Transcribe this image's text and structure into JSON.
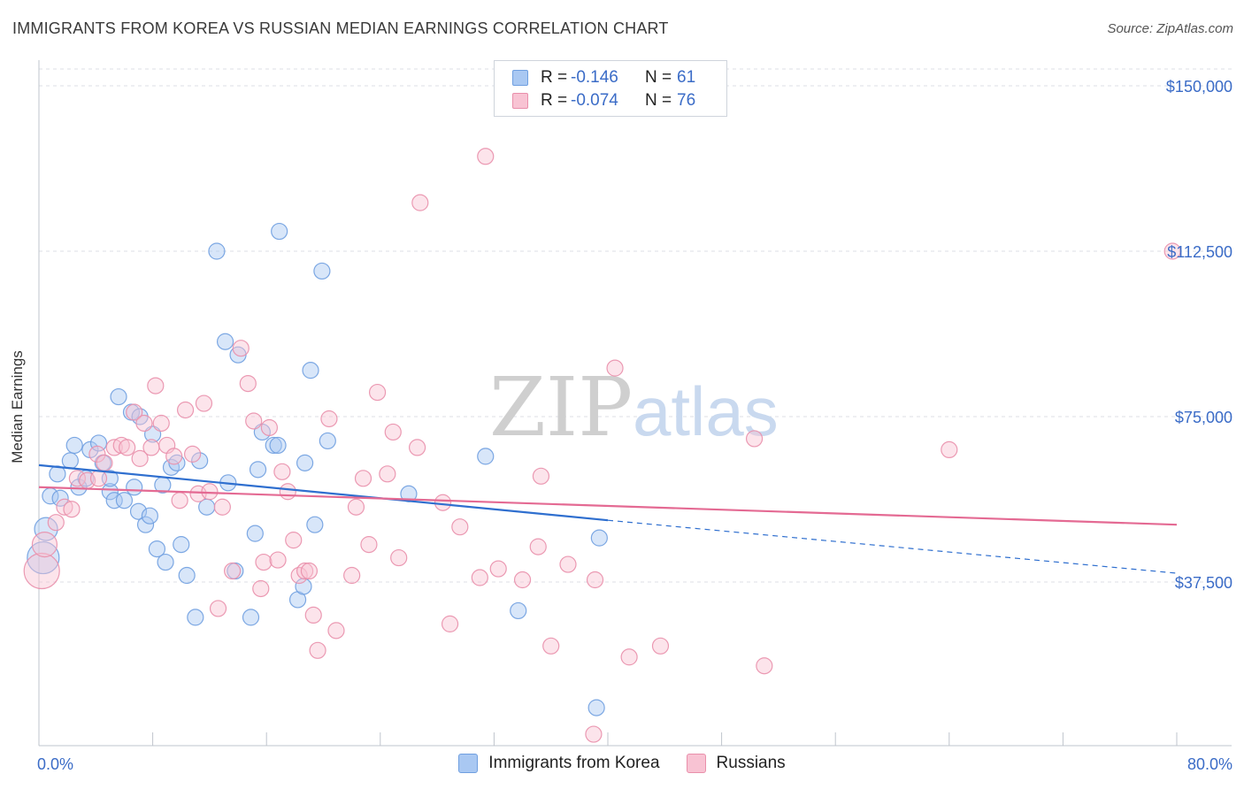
{
  "header": {
    "title": "IMMIGRANTS FROM KOREA VS RUSSIAN MEDIAN EARNINGS CORRELATION CHART",
    "source": "Source: ZipAtlas.com"
  },
  "watermark": {
    "zip": "ZIP",
    "atlas": "atlas"
  },
  "legend_top": [
    {
      "r_label": "R =",
      "r_value": "-0.146",
      "n_label": "N =",
      "n_value": "61",
      "color": "#a9c8f2",
      "border": "#6f9fe0"
    },
    {
      "r_label": "R =",
      "r_value": "-0.074",
      "n_label": "N =",
      "n_value": "76",
      "color": "#f8c3d3",
      "border": "#e98fab"
    }
  ],
  "chart_data": {
    "type": "scatter",
    "ylabel": "Median Earnings",
    "xlabel": "",
    "xlim": [
      0,
      80
    ],
    "ylim": [
      0,
      150000
    ],
    "x_tick_labels": [
      "0.0%",
      "80.0%"
    ],
    "y_ticks": [
      {
        "value": 37500,
        "label": "$37,500"
      },
      {
        "value": 75000,
        "label": "$75,000"
      },
      {
        "value": 112500,
        "label": "$112,500"
      },
      {
        "value": 150000,
        "label": "$150,000"
      }
    ],
    "grid": true,
    "legend_position": "bottom",
    "series": [
      {
        "name": "Immigrants from Korea",
        "color": "#6f9fe0",
        "fill": "#a9c8f2",
        "trend": {
          "x0": 0,
          "y0": 64000,
          "x1": 40,
          "y1": 51500,
          "dash_to_x": 80,
          "dash_y": 39500,
          "color": "#2f6fcf"
        },
        "points": [
          [
            0.5,
            49500,
            13
          ],
          [
            0.3,
            43000,
            18
          ],
          [
            0.8,
            57000,
            9
          ],
          [
            1.3,
            62000,
            9
          ],
          [
            1.5,
            56500,
            9
          ],
          [
            2.2,
            65000,
            9
          ],
          [
            2.5,
            68500,
            9
          ],
          [
            2.8,
            59000,
            9
          ],
          [
            3.3,
            61000,
            9
          ],
          [
            3.6,
            67500,
            9
          ],
          [
            4.2,
            69000,
            9
          ],
          [
            4.5,
            64500,
            9
          ],
          [
            5.0,
            58000,
            9
          ],
          [
            5.3,
            56000,
            9
          ],
          [
            5.0,
            61000,
            9
          ],
          [
            5.6,
            79500,
            9
          ],
          [
            6.0,
            56000,
            9
          ],
          [
            6.5,
            76000,
            9
          ],
          [
            6.7,
            59000,
            9
          ],
          [
            7.0,
            53500,
            9
          ],
          [
            7.1,
            75000,
            9
          ],
          [
            7.5,
            50500,
            9
          ],
          [
            7.8,
            52500,
            9
          ],
          [
            8.0,
            71000,
            9
          ],
          [
            8.3,
            45000,
            9
          ],
          [
            8.7,
            59500,
            9
          ],
          [
            8.9,
            42000,
            9
          ],
          [
            9.3,
            63500,
            9
          ],
          [
            9.7,
            64500,
            9
          ],
          [
            10.0,
            46000,
            9
          ],
          [
            10.4,
            39000,
            9
          ],
          [
            11.0,
            29500,
            9
          ],
          [
            11.3,
            65000,
            9
          ],
          [
            11.8,
            54500,
            9
          ],
          [
            12.5,
            112500,
            9
          ],
          [
            13.1,
            92000,
            9
          ],
          [
            13.3,
            60000,
            9
          ],
          [
            13.8,
            40000,
            9
          ],
          [
            14.0,
            89000,
            9
          ],
          [
            14.9,
            29500,
            9
          ],
          [
            15.2,
            48500,
            9
          ],
          [
            15.4,
            63000,
            9
          ],
          [
            15.7,
            71500,
            9
          ],
          [
            16.5,
            68500,
            9
          ],
          [
            16.8,
            68500,
            9
          ],
          [
            16.9,
            117000,
            9
          ],
          [
            18.2,
            33500,
            9
          ],
          [
            18.6,
            36500,
            9
          ],
          [
            18.7,
            64500,
            9
          ],
          [
            19.1,
            85500,
            9
          ],
          [
            19.4,
            50500,
            9
          ],
          [
            19.9,
            108000,
            9
          ],
          [
            20.3,
            69500,
            9
          ],
          [
            26.0,
            57500,
            9
          ],
          [
            31.4,
            66000,
            9
          ],
          [
            33.7,
            31000,
            9
          ],
          [
            39.4,
            47500,
            9
          ],
          [
            39.2,
            9000,
            9
          ]
        ]
      },
      {
        "name": "Russians",
        "color": "#e98fab",
        "fill": "#f8c3d3",
        "trend": {
          "x0": 0,
          "y0": 59000,
          "x1": 80,
          "y1": 50500,
          "color": "#e46a93"
        },
        "points": [
          [
            0.2,
            40000,
            20
          ],
          [
            0.4,
            46000,
            14
          ],
          [
            1.2,
            51000,
            9
          ],
          [
            1.8,
            54500,
            9
          ],
          [
            2.3,
            54000,
            9
          ],
          [
            2.7,
            61000,
            9
          ],
          [
            3.4,
            60500,
            9
          ],
          [
            4.1,
            66500,
            9
          ],
          [
            4.6,
            64500,
            9
          ],
          [
            5.3,
            68000,
            9
          ],
          [
            5.8,
            68500,
            9
          ],
          [
            6.2,
            68000,
            9
          ],
          [
            6.7,
            76000,
            9
          ],
          [
            7.1,
            65500,
            9
          ],
          [
            7.4,
            73500,
            9
          ],
          [
            7.9,
            68000,
            9
          ],
          [
            8.2,
            82000,
            9
          ],
          [
            8.6,
            73500,
            9
          ],
          [
            9.0,
            68500,
            9
          ],
          [
            9.5,
            66000,
            9
          ],
          [
            9.9,
            56000,
            9
          ],
          [
            10.3,
            76500,
            9
          ],
          [
            10.8,
            66500,
            9
          ],
          [
            11.2,
            57500,
            9
          ],
          [
            11.6,
            78000,
            9
          ],
          [
            12.0,
            58000,
            9
          ],
          [
            12.6,
            31500,
            9
          ],
          [
            12.9,
            54500,
            9
          ],
          [
            13.6,
            40000,
            9
          ],
          [
            14.2,
            90500,
            9
          ],
          [
            14.7,
            82500,
            9
          ],
          [
            15.1,
            74000,
            9
          ],
          [
            15.6,
            36000,
            9
          ],
          [
            15.8,
            42000,
            9
          ],
          [
            16.2,
            72500,
            9
          ],
          [
            16.8,
            42500,
            9
          ],
          [
            17.1,
            62500,
            9
          ],
          [
            17.5,
            58000,
            9
          ],
          [
            17.9,
            47000,
            9
          ],
          [
            18.3,
            39000,
            9
          ],
          [
            18.7,
            40000,
            9
          ],
          [
            19.0,
            40000,
            9
          ],
          [
            19.3,
            30000,
            9
          ],
          [
            19.6,
            22000,
            9
          ],
          [
            20.4,
            74500,
            9
          ],
          [
            20.9,
            26500,
            9
          ],
          [
            22.0,
            39000,
            9
          ],
          [
            22.3,
            54500,
            9
          ],
          [
            22.8,
            61000,
            9
          ],
          [
            23.2,
            46000,
            9
          ],
          [
            23.8,
            80500,
            9
          ],
          [
            24.5,
            62000,
            9
          ],
          [
            24.9,
            71500,
            9
          ],
          [
            25.3,
            43000,
            9
          ],
          [
            26.6,
            68000,
            9
          ],
          [
            26.8,
            123500,
            9
          ],
          [
            28.4,
            55500,
            9
          ],
          [
            28.9,
            28000,
            9
          ],
          [
            29.6,
            50000,
            9
          ],
          [
            31.0,
            38500,
            9
          ],
          [
            31.4,
            134000,
            9
          ],
          [
            32.3,
            40500,
            9
          ],
          [
            34.0,
            38000,
            9
          ],
          [
            35.1,
            45500,
            9
          ],
          [
            35.3,
            61500,
            9
          ],
          [
            36.0,
            23000,
            9
          ],
          [
            37.2,
            41500,
            9
          ],
          [
            39.1,
            38000,
            9
          ],
          [
            39.0,
            3000,
            9
          ],
          [
            40.5,
            86000,
            9
          ],
          [
            41.5,
            20500,
            9
          ],
          [
            43.7,
            23000,
            9
          ],
          [
            50.3,
            70000,
            9
          ],
          [
            51.0,
            18500,
            9
          ],
          [
            64.0,
            67500,
            9
          ],
          [
            79.7,
            112500,
            9
          ],
          [
            4.2,
            61000,
            9
          ]
        ]
      }
    ]
  }
}
